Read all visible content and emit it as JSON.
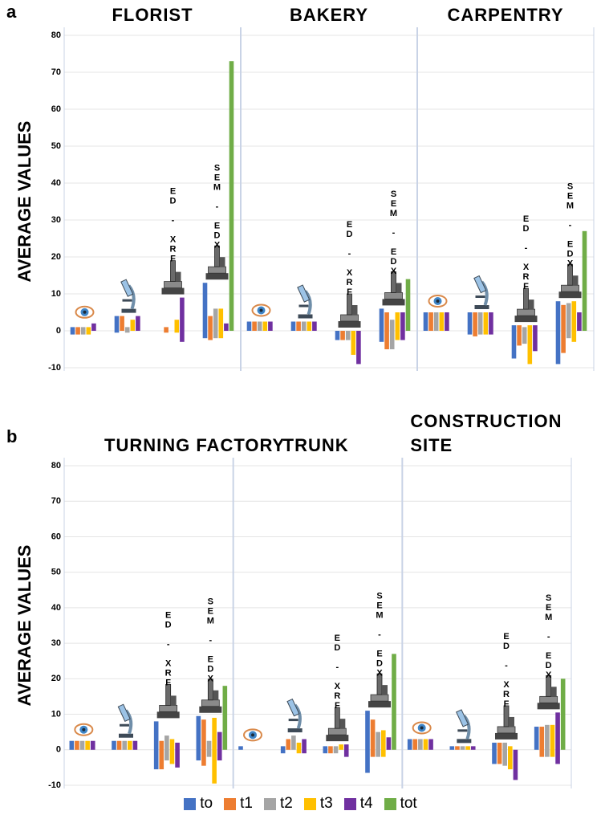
{
  "chart_data": [
    {
      "type": "bar",
      "panel": "a",
      "y_label": "AVERAGE VALUES",
      "groups": [
        "FLORIST",
        "BAKERY",
        "CARPENTRY"
      ],
      "categories": [
        null,
        null,
        "ED - XRF",
        "SEM - EDX",
        null,
        null,
        "ED - XRF",
        "SEM - EDX",
        null,
        null,
        "ED - XRF",
        "SEM - EDX"
      ],
      "ylim": [
        -10,
        80
      ],
      "yticks": [
        -10,
        0,
        10,
        20,
        30,
        40,
        50,
        60,
        70,
        80
      ],
      "grid": true,
      "series": [
        {
          "color": "#4472c4",
          "values": [
            [
              -1,
              1
            ],
            [
              -0.5,
              4
            ],
            null,
            [
              -2,
              13
            ],
            [
              0,
              2.5
            ],
            [
              0,
              2.5
            ],
            [
              -2.5,
              0
            ],
            [
              -3,
              6
            ],
            [
              0,
              5
            ],
            [
              -1,
              5
            ],
            [
              -7.5,
              1.5
            ],
            [
              -9,
              8
            ]
          ]
        },
        {
          "color": "#ed7d31",
          "values": [
            [
              -1,
              1
            ],
            [
              0,
              4
            ],
            [
              -0.5,
              1
            ],
            [
              -2.5,
              4
            ],
            [
              0,
              2.5
            ],
            [
              0,
              2.5
            ],
            [
              -2.5,
              0
            ],
            [
              -5,
              5
            ],
            [
              0,
              5
            ],
            [
              -1.5,
              5
            ],
            [
              -4,
              1.5
            ],
            [
              -6,
              7
            ]
          ]
        },
        {
          "color": "#a5a5a5",
          "values": [
            [
              -1,
              1
            ],
            [
              -0.5,
              1
            ],
            null,
            [
              -2,
              6
            ],
            [
              0,
              2.5
            ],
            [
              0,
              2.5
            ],
            [
              -2.5,
              0
            ],
            [
              -5,
              3
            ],
            [
              0,
              5
            ],
            [
              -1,
              5
            ],
            [
              -3.5,
              1
            ],
            [
              -2,
              7.5
            ]
          ]
        },
        {
          "color": "#ffc000",
          "values": [
            [
              -1,
              1
            ],
            [
              0,
              3
            ],
            [
              -0.5,
              3
            ],
            [
              -2,
              6
            ],
            [
              0,
              2.5
            ],
            [
              0,
              2.5
            ],
            [
              -6.5,
              0
            ],
            [
              -2.5,
              5
            ],
            [
              0,
              5
            ],
            [
              -1,
              5
            ],
            [
              -9,
              1.5
            ],
            [
              -3,
              8
            ]
          ]
        },
        {
          "color": "#7030a0",
          "values": [
            [
              0,
              2
            ],
            [
              0,
              4
            ],
            [
              -3,
              9
            ],
            [
              0,
              2
            ],
            [
              0,
              2.5
            ],
            [
              0,
              2.5
            ],
            [
              -9,
              0
            ],
            [
              -2.5,
              5
            ],
            [
              0,
              5
            ],
            [
              -1,
              5
            ],
            [
              -5.5,
              1.5
            ],
            [
              0,
              5
            ]
          ]
        },
        {
          "color": "#70ad47",
          "values": [
            null,
            null,
            null,
            [
              0,
              73
            ],
            null,
            null,
            null,
            [
              0,
              14
            ],
            null,
            null,
            null,
            [
              0,
              27
            ]
          ]
        }
      ]
    },
    {
      "type": "bar",
      "panel": "b",
      "y_label": "AVERAGE VALUES",
      "groups": [
        "TURNING FACTORY",
        "TRUNK",
        "CONSTRUCTION SITE"
      ],
      "categories": [
        null,
        null,
        "ED - XRF",
        "SEM - EDX",
        null,
        null,
        "ED - XRF",
        "SEM - EDX",
        null,
        null,
        "ED - XRF",
        "SEM - EDX"
      ],
      "ylim": [
        -10,
        80
      ],
      "yticks": [
        -10,
        0,
        10,
        20,
        30,
        40,
        50,
        60,
        70,
        80
      ],
      "grid": true,
      "series": [
        {
          "name": "to",
          "color": "#4472c4",
          "values": [
            [
              0,
              2.5
            ],
            [
              0,
              2.5
            ],
            [
              -5.5,
              8
            ],
            [
              -3,
              9.5
            ],
            [
              0,
              1
            ],
            [
              -1,
              1
            ],
            [
              -1,
              1
            ],
            [
              -6.5,
              11
            ],
            [
              0,
              3
            ],
            [
              0,
              1
            ],
            [
              -4,
              2
            ],
            [
              0,
              6.5
            ]
          ]
        },
        {
          "name": "t1",
          "color": "#ed7d31",
          "values": [
            [
              0,
              2.5
            ],
            [
              0,
              2.5
            ],
            [
              -5.5,
              2.5
            ],
            [
              -4.5,
              8.5
            ],
            null,
            [
              0,
              3
            ],
            [
              -1,
              1
            ],
            [
              -2,
              8.5
            ],
            [
              0,
              3
            ],
            [
              0,
              1
            ],
            [
              -4,
              2
            ],
            [
              -2,
              6.5
            ]
          ]
        },
        {
          "name": "t2",
          "color": "#a5a5a5",
          "values": [
            [
              0,
              2.5
            ],
            [
              0,
              2.5
            ],
            [
              -3,
              4
            ],
            [
              -2,
              2.5
            ],
            null,
            [
              0,
              4
            ],
            [
              -1,
              1
            ],
            [
              -2,
              5
            ],
            [
              0,
              3
            ],
            [
              0,
              1
            ],
            [
              -4.5,
              2
            ],
            [
              -2,
              7
            ]
          ]
        },
        {
          "name": "t3",
          "color": "#ffc000",
          "values": [
            [
              0,
              2.5
            ],
            [
              0,
              2.5
            ],
            [
              -4,
              3
            ],
            [
              -9.5,
              9
            ],
            null,
            [
              -1,
              2
            ],
            [
              0,
              1.5
            ],
            [
              -2,
              5.5
            ],
            [
              0,
              3
            ],
            [
              0,
              1
            ],
            [
              -5.5,
              1
            ],
            [
              -2,
              7
            ]
          ]
        },
        {
          "name": "t4",
          "color": "#7030a0",
          "values": [
            [
              0,
              2.5
            ],
            [
              0,
              2.5
            ],
            [
              -5,
              2
            ],
            [
              -3,
              5
            ],
            null,
            [
              -1,
              3
            ],
            [
              -2,
              1.5
            ],
            [
              0,
              3.5
            ],
            [
              0,
              3
            ],
            [
              0,
              1
            ],
            [
              -8.5,
              0
            ],
            [
              -4,
              10.5
            ]
          ]
        },
        {
          "name": "tot",
          "color": "#70ad47",
          "values": [
            null,
            null,
            null,
            [
              0,
              18
            ],
            null,
            null,
            null,
            [
              0,
              27
            ],
            null,
            null,
            null,
            [
              0,
              20
            ]
          ]
        }
      ]
    }
  ]
}
